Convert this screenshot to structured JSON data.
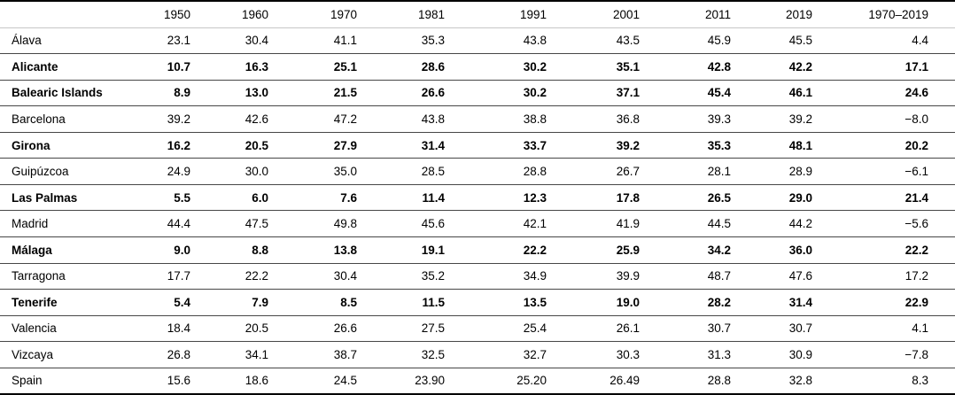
{
  "table": {
    "columns": [
      "",
      "1950",
      "1960",
      "1970",
      "1981",
      "1991",
      "2001",
      "2011",
      "2019",
      "1970–2019"
    ],
    "rows": [
      {
        "label": "Álava",
        "bold": false,
        "values": [
          "23.1",
          "30.4",
          "41.1",
          "35.3",
          "43.8",
          "43.5",
          "45.9",
          "45.5",
          "4.4"
        ]
      },
      {
        "label": "Alicante",
        "bold": true,
        "values": [
          "10.7",
          "16.3",
          "25.1",
          "28.6",
          "30.2",
          "35.1",
          "42.8",
          "42.2",
          "17.1"
        ]
      },
      {
        "label": "Balearic Islands",
        "bold": true,
        "values": [
          "8.9",
          "13.0",
          "21.5",
          "26.6",
          "30.2",
          "37.1",
          "45.4",
          "46.1",
          "24.6"
        ]
      },
      {
        "label": "Barcelona",
        "bold": false,
        "values": [
          "39.2",
          "42.6",
          "47.2",
          "43.8",
          "38.8",
          "36.8",
          "39.3",
          "39.2",
          "−8.0"
        ]
      },
      {
        "label": "Girona",
        "bold": true,
        "values": [
          "16.2",
          "20.5",
          "27.9",
          "31.4",
          "33.7",
          "39.2",
          "35.3",
          "48.1",
          "20.2"
        ]
      },
      {
        "label": "Guipúzcoa",
        "bold": false,
        "values": [
          "24.9",
          "30.0",
          "35.0",
          "28.5",
          "28.8",
          "26.7",
          "28.1",
          "28.9",
          "−6.1"
        ]
      },
      {
        "label": "Las Palmas",
        "bold": true,
        "values": [
          "5.5",
          "6.0",
          "7.6",
          "11.4",
          "12.3",
          "17.8",
          "26.5",
          "29.0",
          "21.4"
        ]
      },
      {
        "label": "Madrid",
        "bold": false,
        "values": [
          "44.4",
          "47.5",
          "49.8",
          "45.6",
          "42.1",
          "41.9",
          "44.5",
          "44.2",
          "−5.6"
        ]
      },
      {
        "label": "Málaga",
        "bold": true,
        "values": [
          "9.0",
          "8.8",
          "13.8",
          "19.1",
          "22.2",
          "25.9",
          "34.2",
          "36.0",
          "22.2"
        ]
      },
      {
        "label": "Tarragona",
        "bold": false,
        "values": [
          "17.7",
          "22.2",
          "30.4",
          "35.2",
          "34.9",
          "39.9",
          "48.7",
          "47.6",
          "17.2"
        ]
      },
      {
        "label": "Tenerife",
        "bold": true,
        "values": [
          "5.4",
          "7.9",
          "8.5",
          "11.5",
          "13.5",
          "19.0",
          "28.2",
          "31.4",
          "22.9"
        ]
      },
      {
        "label": "Valencia",
        "bold": false,
        "values": [
          "18.4",
          "20.5",
          "26.6",
          "27.5",
          "25.4",
          "26.1",
          "30.7",
          "30.7",
          "4.1"
        ]
      },
      {
        "label": "Vizcaya",
        "bold": false,
        "values": [
          "26.8",
          "34.1",
          "38.7",
          "32.5",
          "32.7",
          "30.3",
          "31.3",
          "30.9",
          "−7.8"
        ]
      },
      {
        "label": "Spain",
        "bold": false,
        "values": [
          "15.6",
          "18.6",
          "24.5",
          "23.90",
          "25.20",
          "26.49",
          "28.8",
          "32.8",
          "8.3"
        ]
      }
    ]
  }
}
